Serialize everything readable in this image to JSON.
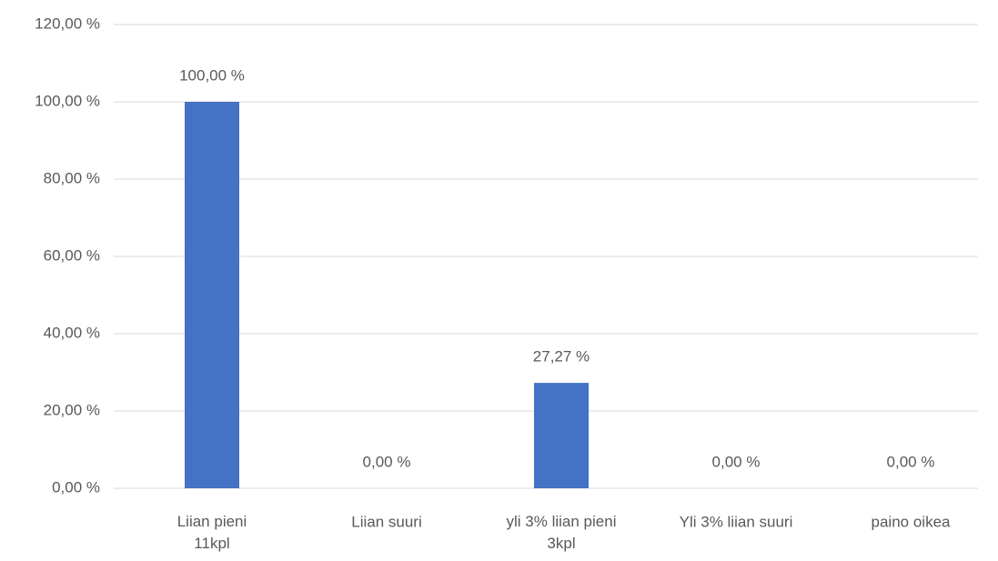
{
  "chart_data": {
    "type": "bar",
    "categories": [
      "Liian pieni\n11kpl",
      "Liian suuri",
      "yli 3% liian pieni\n3kpl",
      "Yli 3% liian suuri",
      "paino oikea"
    ],
    "values": [
      100,
      0,
      27.27,
      0,
      0
    ],
    "value_labels": [
      "100,00 %",
      "0,00 %",
      "27,27 %",
      "0,00 %",
      "0,00 %"
    ],
    "color": "#4472c4",
    "ylim": [
      0,
      120
    ],
    "yticks": [
      {
        "value": 0,
        "label": "0,00 %"
      },
      {
        "value": 20,
        "label": "20,00 %"
      },
      {
        "value": 40,
        "label": "40,00 %"
      },
      {
        "value": 60,
        "label": "60,00 %"
      },
      {
        "value": 80,
        "label": "80,00 %"
      },
      {
        "value": 100,
        "label": "100,00 %"
      },
      {
        "value": 120,
        "label": "120,00 %"
      }
    ],
    "grid": true
  }
}
